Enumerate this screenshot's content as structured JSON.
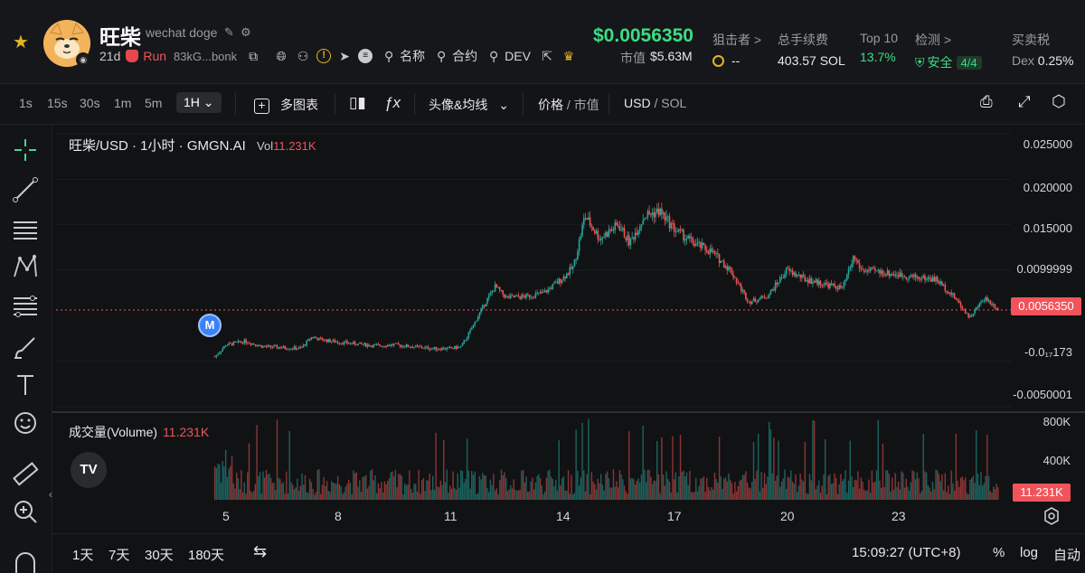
{
  "header": {
    "token_name": "旺柴",
    "token_subtitle": "wechat doge",
    "age": "21d",
    "run_label": "Run",
    "address": "83kG...bonk",
    "name_label": "名称",
    "contract_label": "合约",
    "dev_label": "DEV",
    "price": "$0.0056350",
    "market_cap_label": "市值",
    "market_cap_value": "$5.63M",
    "stats": [
      {
        "key": "狙击者 >",
        "value": "--"
      },
      {
        "key": "总手续费",
        "value": "403.57 SOL"
      },
      {
        "key": "Top 10",
        "value": "13.7%"
      },
      {
        "key": "检测 >",
        "value": "安全",
        "badge": "4/4"
      },
      {
        "key": "买卖税",
        "value_prefix": "Dex",
        "value": "0.25%"
      }
    ]
  },
  "toolbar": {
    "intervals": [
      "1s",
      "15s",
      "30s",
      "1m",
      "5m",
      "1H"
    ],
    "active_interval": "1H",
    "multi_chart": "多图表",
    "avatar_ma": "头像&均线",
    "price_label": "价格",
    "mcap_label": "市值",
    "usd_label": "USD",
    "sol_label": "SOL"
  },
  "chart": {
    "legend_title": "旺柴/USD · 1小时 · GMGN.AI",
    "vol_key": "Vol",
    "vol_value": "11.231K",
    "volume_legend_key": "成交量(Volume)",
    "volume_legend_value": "11.231K",
    "price_axis": [
      "0.025000",
      "0.020000",
      "0.015000",
      "0.0099999",
      "-0.0₁₇173",
      "-0.0050001"
    ],
    "current_price_label": "0.0056350",
    "volume_axis": [
      "800K",
      "400K"
    ],
    "current_volume_label": "11.231K",
    "x_labels": [
      "5",
      "8",
      "11",
      "14",
      "17",
      "20",
      "23"
    ],
    "marker_label": "M",
    "logo_text": "TV"
  },
  "chart_data": {
    "type": "candlestick",
    "title": "旺柴/USD · 1小时 · GMGN.AI",
    "x": [
      4.7,
      5.0,
      5.5,
      6.0,
      6.5,
      7.0,
      7.3,
      7.5,
      8.0,
      8.5,
      9.0,
      9.5,
      10.0,
      10.5,
      11.0,
      11.3,
      11.6,
      11.9,
      12.2,
      12.5,
      13.0,
      13.5,
      14.0,
      14.3,
      14.6,
      15.0,
      15.5,
      15.8,
      16.2,
      16.6,
      17.0,
      17.5,
      18.0,
      18.5,
      18.8,
      19.0,
      19.5,
      20.0,
      20.5,
      21.0,
      21.5,
      21.8,
      22.0,
      22.5,
      23.0,
      23.5,
      24.0,
      24.5,
      24.9,
      25.3,
      25.7
    ],
    "close": [
      0.0005,
      0.0018,
      0.0022,
      0.0016,
      0.0015,
      0.0014,
      0.0027,
      0.0024,
      0.0021,
      0.0019,
      0.0017,
      0.0018,
      0.0016,
      0.0014,
      0.0014,
      0.0016,
      0.0038,
      0.0062,
      0.0082,
      0.007,
      0.0071,
      0.0075,
      0.0091,
      0.0104,
      0.016,
      0.0135,
      0.015,
      0.013,
      0.016,
      0.0165,
      0.0145,
      0.013,
      0.012,
      0.01,
      0.0078,
      0.0065,
      0.0072,
      0.01,
      0.009,
      0.0085,
      0.008,
      0.0115,
      0.01,
      0.0098,
      0.0095,
      0.0092,
      0.009,
      0.007,
      0.0048,
      0.007,
      0.0056
    ],
    "ylim": [
      -0.0050001,
      0.025
    ],
    "current_price": 0.005635,
    "volume_current": "11.231K"
  },
  "bottom": {
    "ranges": [
      "1天",
      "7天",
      "30天",
      "180天"
    ],
    "time": "15:09:27 (UTC+8)",
    "percent": "%",
    "log": "log",
    "auto": "自动"
  },
  "colors": {
    "up": "#26a69a",
    "down": "#ef5350",
    "price_green": "#3ddc84",
    "accent_red": "#f0545a",
    "star": "#e6b422"
  }
}
